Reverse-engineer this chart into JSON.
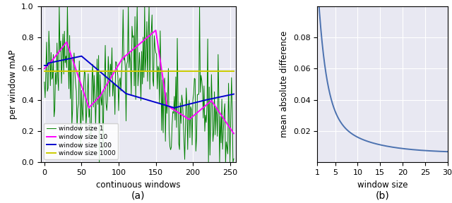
{
  "fig_width": 6.4,
  "fig_height": 2.88,
  "dpi": 100,
  "bg_color": "#ffffff",
  "plot_bg_color": "#e8e8f2",
  "ax1": {
    "xlabel": "continuous windows",
    "ylabel": "per window mAP",
    "xlim": [
      -5,
      258
    ],
    "ylim": [
      0.0,
      1.0
    ],
    "yticks": [
      0.0,
      0.2,
      0.4,
      0.6,
      0.8,
      1.0
    ],
    "xticks": [
      0,
      50,
      100,
      150,
      200,
      250
    ],
    "legend_labels": [
      "window size 1",
      "window size 10",
      "window size 100",
      "window size 1000"
    ],
    "legend_colors": [
      "#008000",
      "#ff00ff",
      "#0000cd",
      "#cccc00"
    ],
    "label_a": "(a)"
  },
  "ax2": {
    "xlabel": "window size",
    "ylabel": "mean absolute difference",
    "xlim": [
      1,
      30
    ],
    "ylim": [
      0.0,
      0.1
    ],
    "yticks": [
      0.02,
      0.04,
      0.06,
      0.08
    ],
    "xticks": [
      1,
      5,
      10,
      15,
      20,
      25,
      30
    ],
    "line_color": "#4c72b0",
    "label_b": "(b)"
  }
}
